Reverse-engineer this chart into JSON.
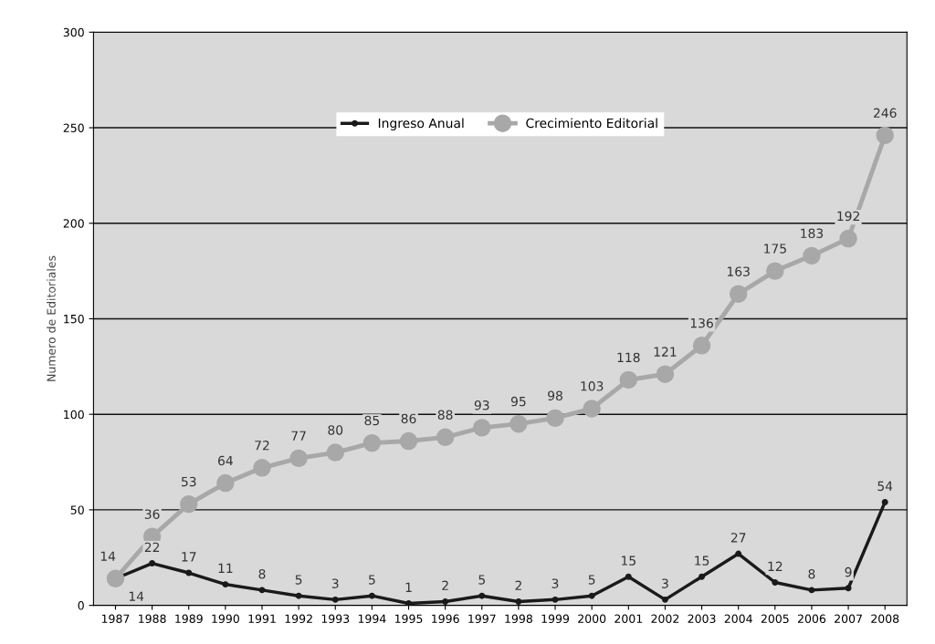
{
  "chart_data": {
    "type": "line",
    "ylabel": "Numero de Editoriales",
    "categories": [
      "1987",
      "1988",
      "1989",
      "1990",
      "1991",
      "1992",
      "1993",
      "1994",
      "1995",
      "1996",
      "1997",
      "1998",
      "1999",
      "2000",
      "2001",
      "2002",
      "2003",
      "2004",
      "2005",
      "2006",
      "2007",
      "2008"
    ],
    "series": [
      {
        "name": "Ingreso Anual",
        "color": "#1a1a1a",
        "marker": "circle",
        "values": [
          14,
          22,
          17,
          11,
          8,
          5,
          3,
          5,
          1,
          2,
          5,
          2,
          3,
          5,
          15,
          3,
          15,
          27,
          12,
          8,
          9,
          54
        ]
      },
      {
        "name": "Crecimiento Editorial",
        "color": "#a8a8a8",
        "marker": "circle",
        "values": [
          14,
          36,
          53,
          64,
          72,
          77,
          80,
          85,
          86,
          88,
          93,
          95,
          98,
          103,
          118,
          121,
          136,
          163,
          175,
          183,
          192,
          246
        ]
      }
    ],
    "ylim": [
      0,
      300
    ],
    "yticks": [
      0,
      50,
      100,
      150,
      200,
      250,
      300
    ],
    "grid": "y",
    "legend": "top",
    "data_labels": true
  }
}
